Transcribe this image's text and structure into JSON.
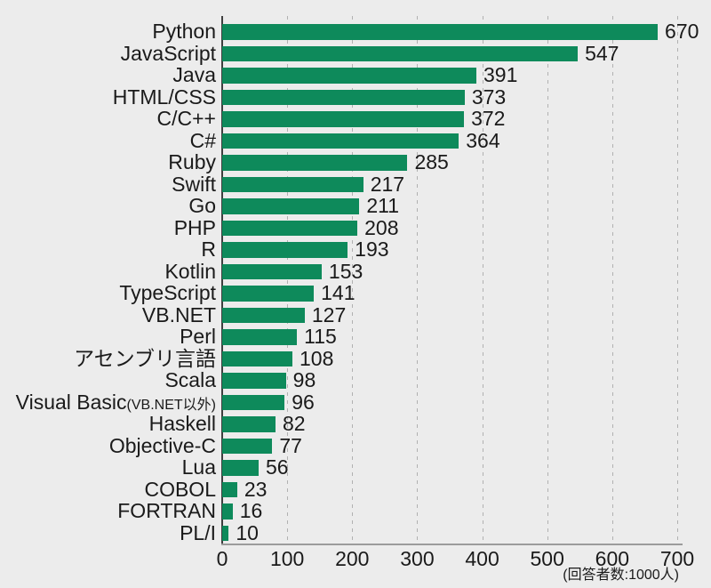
{
  "chart_data": {
    "type": "bar",
    "orientation": "horizontal",
    "title": "",
    "xlabel": "",
    "ylabel": "",
    "xlim": [
      0,
      700
    ],
    "x_ticks": [
      "0",
      "100",
      "200",
      "300",
      "400",
      "500",
      "600",
      "700"
    ],
    "grid": "vertical-dashed",
    "legend": "none",
    "note": "(回答者数:1000人)",
    "categories": [
      "Python",
      "JavaScript",
      "Java",
      "HTML/CSS",
      "C/C++",
      "C#",
      "Ruby",
      "Swift",
      "Go",
      "PHP",
      "R",
      "Kotlin",
      "TypeScript",
      "VB.NET",
      "Perl",
      "アセンブリ言語",
      "Scala",
      "Visual Basic",
      "Haskell",
      "Objective-C",
      "Lua",
      "COBOL",
      "FORTRAN",
      "PL/I"
    ],
    "category_suffixes": [
      "",
      "",
      "",
      "",
      "",
      "",
      "",
      "",
      "",
      "",
      "",
      "",
      "",
      "",
      "",
      "",
      "",
      "(VB.NET以外)",
      "",
      "",
      "",
      "",
      "",
      ""
    ],
    "values": [
      670,
      547,
      391,
      373,
      372,
      364,
      285,
      217,
      211,
      208,
      193,
      153,
      141,
      127,
      115,
      108,
      98,
      96,
      82,
      77,
      56,
      23,
      16,
      10
    ],
    "colors": {
      "bar": "#0e8a5b",
      "background": "#ececec",
      "grid": "#b1b1b1",
      "axis": "#3f3f3f",
      "baseline": "#9b9b9b",
      "text": "#1a1a1a"
    }
  }
}
